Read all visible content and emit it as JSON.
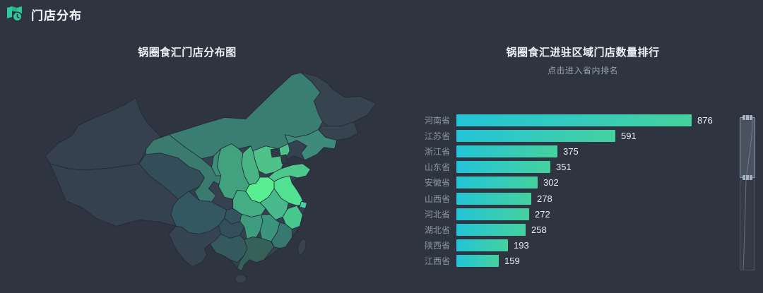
{
  "header": {
    "title": "门店分布",
    "icon": "map-clock-icon",
    "accent_color": "#2fc79d"
  },
  "map_panel": {
    "title": "锅圈食汇门店分布图"
  },
  "ranking_panel": {
    "title": "锅圈食汇进驻区域门店数量排行",
    "subtitle": "点击进入省内排名",
    "bar_gradient_start": "#22c5d8",
    "bar_gradient_end": "#45d19e"
  },
  "zoom_slider": {
    "window_top_percent": 0,
    "window_height_percent": 40
  },
  "chart_data": [
    {
      "type": "bar",
      "orientation": "horizontal",
      "title": "锅圈食汇进驻区域门店数量排行",
      "subtitle": "点击进入省内排名",
      "categories": [
        "河南省",
        "江苏省",
        "浙江省",
        "山东省",
        "安徽省",
        "山西省",
        "河北省",
        "湖北省",
        "陕西省",
        "江西省"
      ],
      "values": [
        876,
        591,
        375,
        351,
        302,
        278,
        272,
        258,
        193,
        159
      ],
      "xlabel": "",
      "ylabel": "",
      "xlim": [
        0,
        876
      ],
      "grid": false,
      "value_labels": true,
      "legend": false
    },
    {
      "type": "heatmap",
      "subtype": "choropleth-map-china",
      "title": "锅圈食汇门店分布图",
      "legend": false,
      "regions": [
        {
          "id": "xinjiang",
          "color": "#35414e"
        },
        {
          "id": "xizang",
          "color": "#35414e"
        },
        {
          "id": "qinghai",
          "color": "#334e59"
        },
        {
          "id": "gansu",
          "color": "#3a7a6f"
        },
        {
          "id": "neimenggu",
          "color": "#3a7d72"
        },
        {
          "id": "heilongjiang",
          "color": "#37434f"
        },
        {
          "id": "jilin",
          "color": "#37434f"
        },
        {
          "id": "liaoning",
          "color": "#3e8a7b"
        },
        {
          "id": "hebei",
          "color": "#4fc289",
          "value": 272
        },
        {
          "id": "beijing",
          "color": "#303b48"
        },
        {
          "id": "tianjin",
          "color": "#303b48"
        },
        {
          "id": "shanxi",
          "color": "#48b483",
          "value": 278
        },
        {
          "id": "shaanxi",
          "color": "#42a27f",
          "value": 193
        },
        {
          "id": "ningxia",
          "color": "#3c8e7b"
        },
        {
          "id": "shandong",
          "color": "#4ec78c",
          "value": 351
        },
        {
          "id": "henan",
          "color": "#58ee91",
          "value": 876
        },
        {
          "id": "jiangsu",
          "color": "#52e093",
          "value": 591
        },
        {
          "id": "anhui",
          "color": "#47b98b",
          "value": 302
        },
        {
          "id": "shanghai",
          "color": "#41d3a3"
        },
        {
          "id": "zhejiang",
          "color": "#49c68d",
          "value": 375
        },
        {
          "id": "hubei",
          "color": "#44ad84",
          "value": 258
        },
        {
          "id": "chongqing",
          "color": "#33545e"
        },
        {
          "id": "sichuan",
          "color": "#345862"
        },
        {
          "id": "guizhou",
          "color": "#334f59"
        },
        {
          "id": "yunnan",
          "color": "#364451"
        },
        {
          "id": "hunan",
          "color": "#3f9c7e"
        },
        {
          "id": "jiangxi",
          "color": "#3b947c",
          "value": 159
        },
        {
          "id": "fujian",
          "color": "#377970"
        },
        {
          "id": "guangxi",
          "color": "#345a5e"
        },
        {
          "id": "guangdong",
          "color": "#366158"
        },
        {
          "id": "hainan",
          "color": "#36434f"
        },
        {
          "id": "taiwan",
          "color": "#39434e"
        }
      ]
    }
  ]
}
